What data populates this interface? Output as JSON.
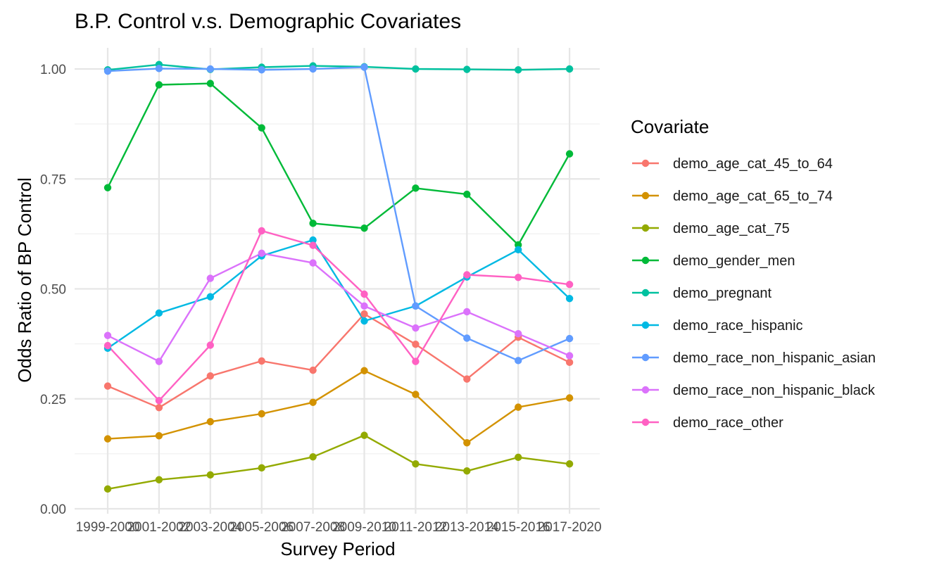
{
  "chart_data": {
    "type": "line",
    "title": "B.P. Control v.s. Demographic Covariates",
    "xlabel": "Survey Period",
    "ylabel": "Odds Ratio of BP Control",
    "ylim": [
      0,
      1.0
    ],
    "yticks": [
      "0.00",
      "0.25",
      "0.50",
      "0.75",
      "1.00"
    ],
    "categories": [
      "1999-2000",
      "2001-2002",
      "2003-2004",
      "2005-2006",
      "2007-2008",
      "2009-2010",
      "2011-2012",
      "2013-2014",
      "2015-2016",
      "2017-2020"
    ],
    "grid": true,
    "legend": {
      "title": "Covariate",
      "position": "right"
    },
    "series": [
      {
        "name": "demo_age_cat_45_to_64",
        "color": "#F8766D",
        "values": [
          0.279,
          0.23,
          0.302,
          0.336,
          0.315,
          0.443,
          0.374,
          0.295,
          0.39,
          0.333
        ]
      },
      {
        "name": "demo_age_cat_65_to_74",
        "color": "#D39200",
        "values": [
          0.159,
          0.166,
          0.198,
          0.216,
          0.242,
          0.314,
          0.26,
          0.15,
          0.231,
          0.252
        ]
      },
      {
        "name": "demo_age_cat_75",
        "color": "#93AA00",
        "values": [
          0.045,
          0.066,
          0.077,
          0.093,
          0.118,
          0.167,
          0.102,
          0.086,
          0.117,
          0.102
        ]
      },
      {
        "name": "demo_gender_men",
        "color": "#00BA38",
        "values": [
          0.73,
          0.964,
          0.967,
          0.866,
          0.649,
          0.638,
          0.729,
          0.715,
          0.6,
          0.807
        ]
      },
      {
        "name": "demo_pregnant",
        "color": "#00C19F",
        "values": [
          0.998,
          1.01,
          0.999,
          1.004,
          1.007,
          1.005,
          1.0,
          0.999,
          0.998,
          1.0
        ]
      },
      {
        "name": "demo_race_hispanic",
        "color": "#00B9E3",
        "values": [
          0.365,
          0.445,
          0.482,
          0.575,
          0.611,
          0.427,
          0.461,
          0.527,
          0.589,
          0.478
        ]
      },
      {
        "name": "demo_race_non_hispanic_asian",
        "color": "#619CFF",
        "values": [
          0.995,
          1.001,
          1.0,
          0.998,
          1.0,
          1.004,
          0.461,
          0.388,
          0.337,
          0.387
        ]
      },
      {
        "name": "demo_race_non_hispanic_black",
        "color": "#DB72FB",
        "values": [
          0.394,
          0.335,
          0.524,
          0.581,
          0.559,
          0.461,
          0.411,
          0.448,
          0.398,
          0.348
        ]
      },
      {
        "name": "demo_race_other",
        "color": "#FF61C3",
        "values": [
          0.371,
          0.246,
          0.372,
          0.632,
          0.599,
          0.488,
          0.335,
          0.532,
          0.526,
          0.51
        ]
      }
    ]
  }
}
